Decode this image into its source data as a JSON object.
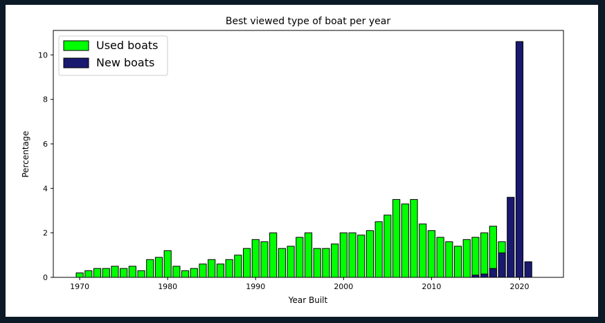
{
  "chart_data": {
    "type": "bar",
    "title": "Best viewed type of boat per year",
    "xlabel": "Year Built",
    "ylabel": "Percentage",
    "xlim": [
      1967,
      2025
    ],
    "ylim": [
      0,
      11.1
    ],
    "x_ticks": [
      1970,
      1980,
      1990,
      2000,
      2010,
      2020
    ],
    "y_ticks": [
      0,
      2,
      4,
      6,
      8,
      10
    ],
    "grid": false,
    "legend_position": "top-left",
    "series": [
      {
        "name": "Used boats",
        "color": "#00ff00",
        "points": [
          [
            1970,
            0.2
          ],
          [
            1971,
            0.3
          ],
          [
            1972,
            0.4
          ],
          [
            1973,
            0.4
          ],
          [
            1974,
            0.5
          ],
          [
            1975,
            0.4
          ],
          [
            1976,
            0.5
          ],
          [
            1977,
            0.3
          ],
          [
            1978,
            0.8
          ],
          [
            1979,
            0.9
          ],
          [
            1980,
            1.2
          ],
          [
            1981,
            0.5
          ],
          [
            1982,
            0.3
          ],
          [
            1983,
            0.4
          ],
          [
            1984,
            0.6
          ],
          [
            1985,
            0.8
          ],
          [
            1986,
            0.6
          ],
          [
            1987,
            0.8
          ],
          [
            1988,
            1.0
          ],
          [
            1989,
            1.3
          ],
          [
            1990,
            1.7
          ],
          [
            1991,
            1.6
          ],
          [
            1992,
            2.0
          ],
          [
            1993,
            1.3
          ],
          [
            1994,
            1.4
          ],
          [
            1995,
            1.8
          ],
          [
            1996,
            2.0
          ],
          [
            1997,
            1.3
          ],
          [
            1998,
            1.3
          ],
          [
            1999,
            1.5
          ],
          [
            2000,
            2.0
          ],
          [
            2001,
            2.0
          ],
          [
            2002,
            1.9
          ],
          [
            2003,
            2.1
          ],
          [
            2004,
            2.5
          ],
          [
            2005,
            2.8
          ],
          [
            2006,
            3.5
          ],
          [
            2007,
            3.3
          ],
          [
            2008,
            3.5
          ],
          [
            2009,
            2.4
          ],
          [
            2010,
            2.1
          ],
          [
            2011,
            1.8
          ],
          [
            2012,
            1.6
          ],
          [
            2013,
            1.4
          ],
          [
            2014,
            1.7
          ],
          [
            2015,
            1.8
          ],
          [
            2016,
            2.0
          ],
          [
            2017,
            2.3
          ],
          [
            2018,
            1.6
          ]
        ]
      },
      {
        "name": "New boats",
        "color": "#191970",
        "points": [
          [
            2015,
            0.1
          ],
          [
            2016,
            0.15
          ],
          [
            2017,
            0.4
          ],
          [
            2018,
            1.1
          ],
          [
            2019,
            3.6
          ],
          [
            2020,
            10.6
          ],
          [
            2021,
            0.7
          ]
        ]
      }
    ]
  }
}
